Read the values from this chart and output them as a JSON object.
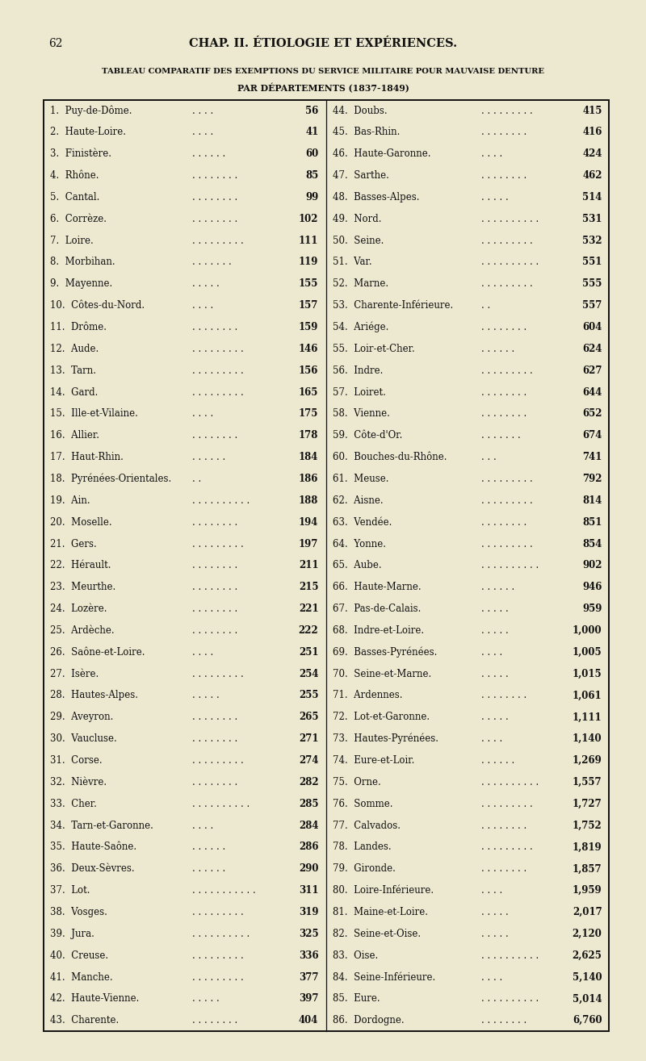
{
  "page_number": "62",
  "chapter_header": "CHAP. II. ÉTIOLOGIE ET EXPÉRIENCES.",
  "title_line1": "TABLEAU COMPARATIF DES EXEMPTIONS DU SERVICE MILITAIRE POUR MAUVAISE DENTURE",
  "title_line2": "PAR DÉPARTEMENTS (1837-1849)",
  "background_color": "#ede8d0",
  "text_color": "#111111",
  "left_entries": [
    [
      "1.  Puy-de-Dôme.",
      ". . . .",
      "56"
    ],
    [
      "2.  Haute-Loire.",
      ". . . .",
      "41"
    ],
    [
      "3.  Finistère.",
      ". . . . . .",
      "60"
    ],
    [
      "4.  Rhône.",
      ". . . . . . . .",
      "85"
    ],
    [
      "5.  Cantal.",
      ". . . . . . . .",
      "99"
    ],
    [
      "6.  Corrèze.",
      ". . . . . . . .",
      "102"
    ],
    [
      "7.  Loire.",
      ". . . . . . . . .",
      "111"
    ],
    [
      "8.  Morbihan.",
      ". . . . . . .",
      "119"
    ],
    [
      "9.  Mayenne.",
      ". . . . .",
      "155"
    ],
    [
      "10.  Côtes-du-Nord.",
      ". . . .",
      "157"
    ],
    [
      "11.  Drôme.",
      ". . . . . . . .",
      "159"
    ],
    [
      "12.  Aude.",
      ". . . . . . . . .",
      "146"
    ],
    [
      "13.  Tarn.",
      ". . . . . . . . .",
      "156"
    ],
    [
      "14.  Gard.",
      ". . . . . . . . .",
      "165"
    ],
    [
      "15.  Ille-et-Vilaine.",
      ". . . .",
      "175"
    ],
    [
      "16.  Allier.",
      ". . . . . . . .",
      "178"
    ],
    [
      "17.  Haut-Rhin.",
      ". . . . . .",
      "184"
    ],
    [
      "18.  Pyrénées-Orientales.",
      ". .",
      "186"
    ],
    [
      "19.  Ain.",
      ". . . . . . . . . .",
      "188"
    ],
    [
      "20.  Moselle.",
      ". . . . . . . .",
      "194"
    ],
    [
      "21.  Gers.",
      ". . . . . . . . .",
      "197"
    ],
    [
      "22.  Hérault.",
      ". . . . . . . .",
      "211"
    ],
    [
      "23.  Meurthe.",
      ". . . . . . . .",
      "215"
    ],
    [
      "24.  Lozère.",
      ". . . . . . . .",
      "221"
    ],
    [
      "25.  Ardèche.",
      ". . . . . . . .",
      "222"
    ],
    [
      "26.  Saône-et-Loire.",
      ". . . .",
      "251"
    ],
    [
      "27.  Isère.",
      ". . . . . . . . .",
      "254"
    ],
    [
      "28.  Hautes-Alpes.",
      ". . . . .",
      "255"
    ],
    [
      "29.  Aveyron.",
      ". . . . . . . .",
      "265"
    ],
    [
      "30.  Vaucluse.",
      ". . . . . . . .",
      "271"
    ],
    [
      "31.  Corse.",
      ". . . . . . . . .",
      "274"
    ],
    [
      "32.  Nièvre.",
      ". . . . . . . .",
      "282"
    ],
    [
      "33.  Cher.",
      ". . . . . . . . . .",
      "285"
    ],
    [
      "34.  Tarn-et-Garonne.",
      ". . . .",
      "284"
    ],
    [
      "35.  Haute-Saône.",
      ". . . . . .",
      "286"
    ],
    [
      "36.  Deux-Sèvres.",
      ". . . . . .",
      "290"
    ],
    [
      "37.  Lot.",
      ". . . . . . . . . . .",
      "311"
    ],
    [
      "38.  Vosges.",
      ". . . . . . . . .",
      "319"
    ],
    [
      "39.  Jura.",
      ". . . . . . . . . .",
      "325"
    ],
    [
      "40.  Creuse.",
      ". . . . . . . . .",
      "336"
    ],
    [
      "41.  Manche.",
      ". . . . . . . . .",
      "377"
    ],
    [
      "42.  Haute-Vienne.",
      ". . . . .",
      "397"
    ],
    [
      "43.  Charente.",
      ". . . . . . . .",
      "404"
    ]
  ],
  "right_entries": [
    [
      "44.  Doubs.",
      ". . . . . . . . .",
      "415"
    ],
    [
      "45.  Bas-Rhin.",
      ". . . . . . . .",
      "416"
    ],
    [
      "46.  Haute-Garonne.",
      ". . . .",
      "424"
    ],
    [
      "47.  Sarthe.",
      ". . . . . . . .",
      "462"
    ],
    [
      "48.  Basses-Alpes.",
      ". . . . .",
      "514"
    ],
    [
      "49.  Nord.",
      ". . . . . . . . . .",
      "531"
    ],
    [
      "50.  Seine.",
      ". . . . . . . . .",
      "532"
    ],
    [
      "51.  Var.",
      ". . . . . . . . . .",
      "551"
    ],
    [
      "52.  Marne.",
      ". . . . . . . . .",
      "555"
    ],
    [
      "53.  Charente-Inférieure.",
      ". .",
      "557"
    ],
    [
      "54.  Ariége.",
      ". . . . . . . .",
      "604"
    ],
    [
      "55.  Loir-et-Cher.",
      ". . . . . .",
      "624"
    ],
    [
      "56.  Indre.",
      ". . . . . . . . .",
      "627"
    ],
    [
      "57.  Loiret.",
      ". . . . . . . .",
      "644"
    ],
    [
      "58.  Vienne.",
      ". . . . . . . .",
      "652"
    ],
    [
      "59.  Côte-d'Or.",
      ". . . . . . .",
      "674"
    ],
    [
      "60.  Bouches-du-Rhône.",
      ". . .",
      "741"
    ],
    [
      "61.  Meuse.",
      ". . . . . . . . .",
      "792"
    ],
    [
      "62.  Aisne.",
      ". . . . . . . . .",
      "814"
    ],
    [
      "63.  Vendée.",
      ". . . . . . . .",
      "851"
    ],
    [
      "64.  Yonne.",
      ". . . . . . . . .",
      "854"
    ],
    [
      "65.  Aube.",
      ". . . . . . . . . .",
      "902"
    ],
    [
      "66.  Haute-Marne.",
      ". . . . . .",
      "946"
    ],
    [
      "67.  Pas-de-Calais.",
      ". . . . .",
      "959"
    ],
    [
      "68.  Indre-et-Loire.",
      ". . . . .",
      "1,000"
    ],
    [
      "69.  Basses-Pyrénées.",
      ". . . .",
      "1,005"
    ],
    [
      "70.  Seine-et-Marne.",
      ". . . . .",
      "1,015"
    ],
    [
      "71.  Ardennes.",
      ". . . . . . . .",
      "1,061"
    ],
    [
      "72.  Lot-et-Garonne.",
      ". . . . .",
      "1,111"
    ],
    [
      "73.  Hautes-Pyrénées.",
      ". . . .",
      "1,140"
    ],
    [
      "74.  Eure-et-Loir.",
      ". . . . . .",
      "1,269"
    ],
    [
      "75.  Orne.",
      ". . . . . . . . . .",
      "1,557"
    ],
    [
      "76.  Somme.",
      ". . . . . . . . .",
      "1,727"
    ],
    [
      "77.  Calvados.",
      ". . . . . . . .",
      "1,752"
    ],
    [
      "78.  Landes.",
      ". . . . . . . . .",
      "1,819"
    ],
    [
      "79.  Gironde.",
      ". . . . . . . .",
      "1,857"
    ],
    [
      "80.  Loire-Inférieure.",
      ". . . .",
      "1,959"
    ],
    [
      "81.  Maine-et-Loire.",
      ". . . . .",
      "2,017"
    ],
    [
      "82.  Seine-et-Oise.",
      ". . . . .",
      "2,120"
    ],
    [
      "83.  Oise.",
      ". . . . . . . . . .",
      "2,625"
    ],
    [
      "84.  Seine-Inférieure.",
      ". . . .",
      "5,140"
    ],
    [
      "85.  Eure.",
      ". . . . . . . . . .",
      "5,014"
    ],
    [
      "86.  Dordogne.",
      ". . . . . . . .",
      "6,760"
    ]
  ]
}
